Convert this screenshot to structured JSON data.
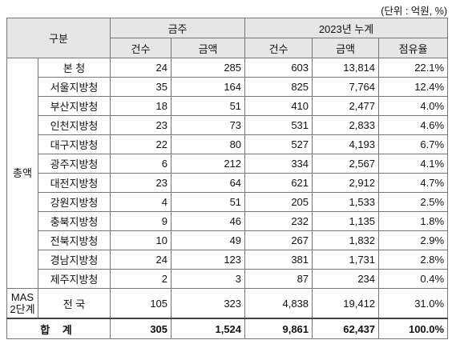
{
  "unit": "(단위 : 억원, %)",
  "header": {
    "group": "구분",
    "this_week": "금주",
    "cumulative": "2023년 누계",
    "columns": [
      "건수",
      "금액",
      "건수",
      "금액",
      "점유율"
    ]
  },
  "sections": [
    {
      "label": "총액",
      "rows": [
        {
          "name": "본 청",
          "cells": [
            "24",
            "285",
            "603",
            "13,814",
            "22.1%"
          ]
        },
        {
          "name": "서울지방청",
          "cells": [
            "35",
            "164",
            "825",
            "7,764",
            "12.4%"
          ]
        },
        {
          "name": "부산지방청",
          "cells": [
            "18",
            "51",
            "410",
            "2,477",
            "4.0%"
          ]
        },
        {
          "name": "인천지방청",
          "cells": [
            "23",
            "73",
            "531",
            "2,833",
            "4.6%"
          ]
        },
        {
          "name": "대구지방청",
          "cells": [
            "22",
            "80",
            "527",
            "4,193",
            "6.7%"
          ]
        },
        {
          "name": "광주지방청",
          "cells": [
            "6",
            "212",
            "334",
            "2,567",
            "4.1%"
          ]
        },
        {
          "name": "대전지방청",
          "cells": [
            "23",
            "64",
            "621",
            "2,912",
            "4.7%"
          ]
        },
        {
          "name": "강원지방청",
          "cells": [
            "4",
            "51",
            "205",
            "1,533",
            "2.5%"
          ]
        },
        {
          "name": "충북지방청",
          "cells": [
            "9",
            "46",
            "232",
            "1,135",
            "1.8%"
          ]
        },
        {
          "name": "전북지방청",
          "cells": [
            "10",
            "49",
            "267",
            "1,832",
            "2.9%"
          ]
        },
        {
          "name": "경남지방청",
          "cells": [
            "24",
            "123",
            "381",
            "1,731",
            "2.8%"
          ]
        },
        {
          "name": "제주지방청",
          "cells": [
            "2",
            "3",
            "87",
            "234",
            "0.4%"
          ]
        }
      ]
    },
    {
      "label": "MAS 2단계",
      "rows": [
        {
          "name": "전 국",
          "cells": [
            "105",
            "323",
            "4,838",
            "19,412",
            "31.0%"
          ]
        }
      ]
    }
  ],
  "total": {
    "label": "합 계",
    "cells": [
      "305",
      "1,524",
      "9,861",
      "62,437",
      "100.0%"
    ]
  }
}
